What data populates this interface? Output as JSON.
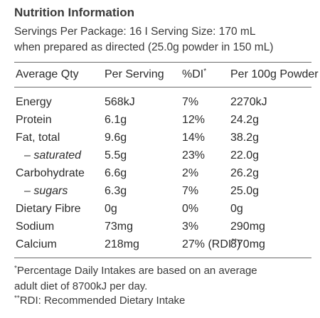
{
  "title": "Nutrition Information",
  "servings": {
    "line1": "Servings Per Package: 16  I  Serving Size: 170 mL",
    "line2": "when prepared as directed (25.0g powder in 150 mL)"
  },
  "table": {
    "headers": {
      "qty": "Average Qty",
      "per_serving": "Per Serving",
      "pdi": "%DI",
      "pdi_mark": "*",
      "per_100g": "Per 100g Powder"
    },
    "rows": [
      {
        "name": "Energy",
        "serving": "568kJ",
        "pdi": "7%",
        "per100": "2270kJ"
      },
      {
        "name": "Protein",
        "serving": "6.1g",
        "pdi": "12%",
        "per100": "24.2g"
      },
      {
        "name": "Fat, total",
        "serving": "9.6g",
        "pdi": "14%",
        "per100": "38.2g"
      },
      {
        "name": "– saturated",
        "serving": "5.5g",
        "pdi": "23%",
        "per100": "22.0g"
      },
      {
        "name": "Carbohydrate",
        "serving": "6.6g",
        "pdi": "2%",
        "per100": "26.2g"
      },
      {
        "name": "– sugars",
        "serving": "6.3g",
        "pdi": "7%",
        "per100": "25.0g"
      },
      {
        "name": "Dietary Fibre",
        "serving": "0g",
        "pdi": "0%",
        "per100": "0g"
      },
      {
        "name": "Sodium",
        "serving": "73mg",
        "pdi": "3%",
        "per100": "290mg"
      },
      {
        "name": "Calcium",
        "serving": "218mg",
        "pdi": "27% (RDI",
        "pdi_suffix_mark": "**",
        "pdi_suffix_close": ")",
        "per100": "870mg"
      }
    ]
  },
  "footnotes": {
    "fn1_mark": "*",
    "fn1_line1": "Percentage Daily Intakes are based on an average",
    "fn1_line2": "adult diet of 8700kJ per day.",
    "fn2_mark": "**",
    "fn2_text": "RDI: Recommended Dietary Intake"
  }
}
